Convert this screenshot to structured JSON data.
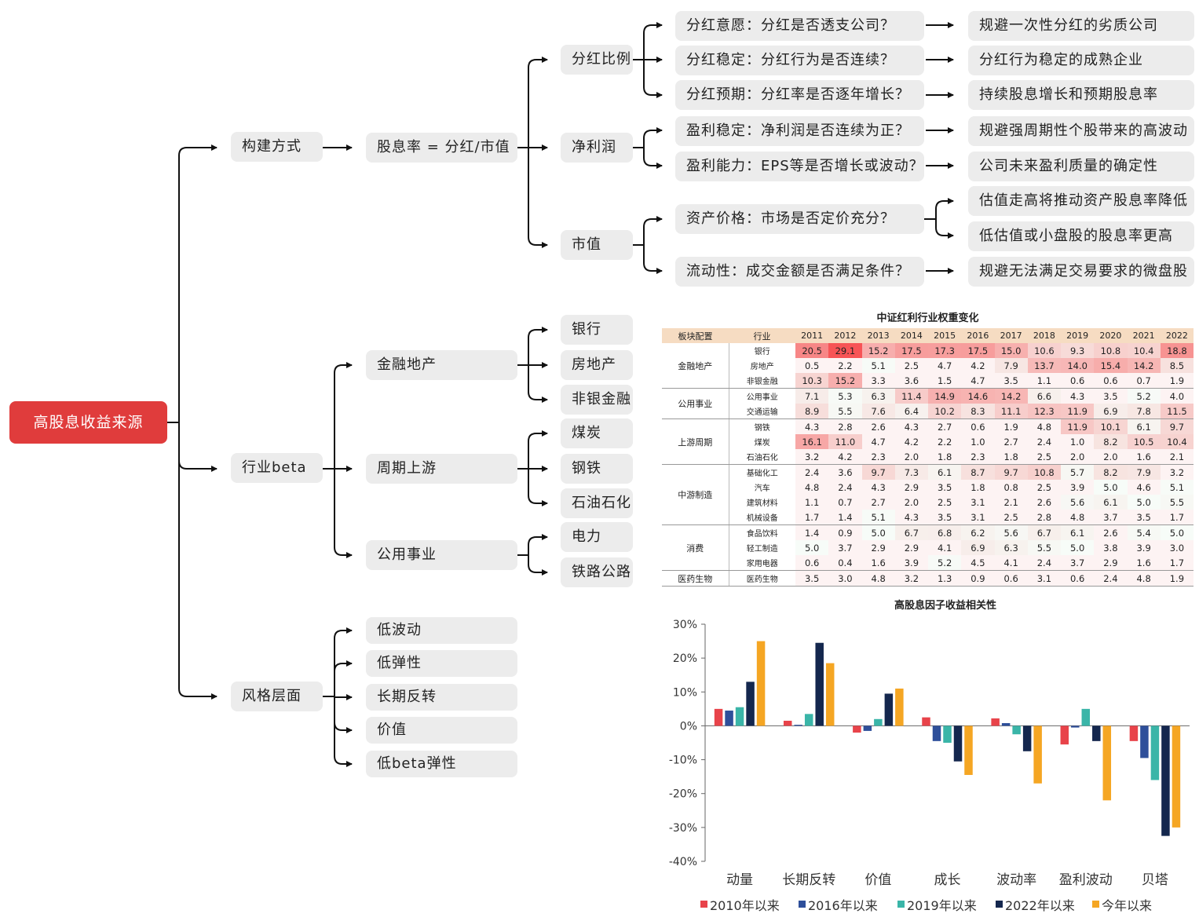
{
  "root": "高股息收益来源",
  "level1": {
    "construct": "构建方式",
    "industry": "行业beta",
    "style": "风格层面"
  },
  "formula": "股息率 = 分红/市值",
  "components": {
    "dividend_ratio": "分红比例",
    "net_profit": "净利润",
    "market_cap": "市值"
  },
  "questions": [
    {
      "q": "分红意愿：分红是否透支公司？",
      "a": "规避一次性分红的劣质公司"
    },
    {
      "q": "分红稳定：分红行为是否连续？",
      "a": "分红行为稳定的成熟企业"
    },
    {
      "q": "分红预期：分红率是否逐年增长？",
      "a": "持续股息增长和预期股息率"
    },
    {
      "q": "盈利稳定：净利润是否连续为正？",
      "a": "规避强周期性个股带来的高波动"
    },
    {
      "q": "盈利能力：EPS等是否增长或波动？",
      "a": "公司未来盈利质量的确定性"
    },
    {
      "q": "资产价格：市场是否定价充分？",
      "a": "估值走高将推动资产股息率降低",
      "a2": "低估值或小盘股的股息率更高"
    },
    {
      "q": "流动性：成交金额是否满足条件？",
      "a": "规避无法满足交易要求的微盘股"
    }
  ],
  "industry_groups": [
    {
      "name": "金融地产",
      "items": [
        "银行",
        "房地产",
        "非银金融"
      ]
    },
    {
      "name": "周期上游",
      "items": [
        "煤炭",
        "钢铁",
        "石油石化"
      ]
    },
    {
      "name": "公用事业",
      "items": [
        "电力",
        "铁路公路"
      ]
    }
  ],
  "styles": [
    "低波动",
    "低弹性",
    "长期反转",
    "价值",
    "低beta弹性"
  ],
  "table": {
    "title": "中证红利行业权重变化",
    "header_sector": "板块配置",
    "header_industry": "行业",
    "years": [
      "2011",
      "2012",
      "2013",
      "2014",
      "2015",
      "2016",
      "2017",
      "2018",
      "2019",
      "2020",
      "2021",
      "2022"
    ],
    "groups": [
      {
        "sector": "金融地产",
        "rows": [
          {
            "ind": "银行",
            "vals": [
              20.5,
              29.1,
              15.2,
              17.5,
              17.3,
              17.5,
              15.0,
              10.6,
              9.3,
              10.8,
              10.4,
              18.8
            ]
          },
          {
            "ind": "房地产",
            "vals": [
              0.5,
              2.2,
              5.1,
              2.5,
              4.7,
              4.2,
              7.9,
              13.7,
              14.0,
              15.4,
              14.2,
              8.5
            ]
          },
          {
            "ind": "非银金融",
            "vals": [
              10.3,
              15.2,
              3.3,
              3.6,
              1.5,
              4.7,
              3.5,
              1.1,
              0.6,
              0.6,
              0.7,
              1.9
            ]
          }
        ]
      },
      {
        "sector": "公用事业",
        "rows": [
          {
            "ind": "公用事业",
            "vals": [
              7.1,
              5.3,
              6.3,
              11.4,
              14.9,
              14.6,
              14.2,
              6.6,
              4.3,
              3.5,
              5.2,
              4.0
            ]
          },
          {
            "ind": "交通运输",
            "vals": [
              8.9,
              5.5,
              7.6,
              6.4,
              10.2,
              8.3,
              11.1,
              12.3,
              11.9,
              6.9,
              7.8,
              11.5
            ]
          }
        ]
      },
      {
        "sector": "上游周期",
        "rows": [
          {
            "ind": "钢铁",
            "vals": [
              4.3,
              2.8,
              2.6,
              4.3,
              2.7,
              0.6,
              1.9,
              4.8,
              11.9,
              10.1,
              6.1,
              9.7
            ]
          },
          {
            "ind": "煤炭",
            "vals": [
              16.1,
              11.0,
              4.7,
              4.2,
              2.2,
              1.0,
              2.7,
              2.4,
              1.0,
              8.2,
              10.5,
              10.4
            ]
          },
          {
            "ind": "石油石化",
            "vals": [
              3.2,
              4.2,
              2.3,
              2.0,
              1.8,
              2.3,
              1.8,
              2.5,
              2.0,
              2.0,
              1.6,
              2.1
            ]
          }
        ]
      },
      {
        "sector": "中游制造",
        "rows": [
          {
            "ind": "基础化工",
            "vals": [
              2.4,
              3.6,
              9.7,
              7.3,
              6.1,
              8.7,
              9.7,
              10.8,
              5.7,
              8.2,
              7.9,
              3.2
            ]
          },
          {
            "ind": "汽车",
            "vals": [
              4.8,
              2.4,
              4.3,
              2.9,
              3.5,
              1.8,
              0.8,
              2.5,
              3.9,
              5.0,
              4.6,
              5.1
            ]
          },
          {
            "ind": "建筑材料",
            "vals": [
              1.1,
              0.7,
              2.7,
              2.0,
              2.5,
              3.1,
              2.1,
              2.6,
              5.6,
              6.1,
              5.0,
              5.5
            ]
          },
          {
            "ind": "机械设备",
            "vals": [
              1.7,
              1.4,
              5.1,
              4.3,
              3.5,
              3.1,
              2.5,
              2.8,
              4.8,
              3.7,
              3.5,
              1.7
            ]
          }
        ]
      },
      {
        "sector": "消费",
        "rows": [
          {
            "ind": "食品饮料",
            "vals": [
              1.4,
              0.9,
              5.0,
              6.7,
              6.8,
              6.2,
              5.6,
              6.7,
              6.1,
              2.6,
              5.4,
              5.0
            ]
          },
          {
            "ind": "轻工制造",
            "vals": [
              5.0,
              3.7,
              2.9,
              2.9,
              4.1,
              6.9,
              6.3,
              5.5,
              5.0,
              3.8,
              3.9,
              3.0
            ]
          },
          {
            "ind": "家用电器",
            "vals": [
              0.6,
              0.4,
              1.6,
              3.9,
              5.2,
              4.5,
              4.1,
              2.4,
              3.7,
              2.9,
              1.6,
              1.7
            ]
          }
        ]
      },
      {
        "sector": "医药生物",
        "rows": [
          {
            "ind": "医药生物",
            "vals": [
              3.5,
              3.0,
              4.8,
              3.2,
              1.3,
              0.9,
              0.6,
              3.1,
              0.6,
              2.4,
              4.8,
              1.9
            ]
          }
        ]
      }
    ]
  },
  "chart_data": {
    "type": "bar",
    "title": "高股息因子收益相关性",
    "categories": [
      "动量",
      "长期反转",
      "价值",
      "成长",
      "波动率",
      "盈利波动",
      "贝塔"
    ],
    "series": [
      {
        "name": "2010年以来",
        "color": "#e8434a",
        "values": [
          5.0,
          1.5,
          -2.0,
          2.5,
          2.2,
          -5.5,
          -4.5
        ]
      },
      {
        "name": "2016年以来",
        "color": "#2e4f9a",
        "values": [
          4.5,
          0.3,
          -1.5,
          -4.5,
          0.8,
          -0.5,
          -9.5
        ]
      },
      {
        "name": "2019年以来",
        "color": "#3ab5a8",
        "values": [
          5.5,
          3.5,
          2.0,
          -5.0,
          -2.5,
          5.0,
          -16.0
        ]
      },
      {
        "name": "2022年以来",
        "color": "#14274e",
        "values": [
          13.0,
          24.5,
          9.5,
          -10.5,
          -7.5,
          -4.5,
          -32.5
        ]
      },
      {
        "name": "今年以来",
        "color": "#f5a623",
        "values": [
          25.0,
          18.5,
          11.0,
          -14.5,
          -17.0,
          -22.0,
          -30.0
        ]
      }
    ],
    "ylim": [
      -40,
      30
    ],
    "yticks": [
      "30%",
      "20%",
      "10%",
      "0%",
      "-10%",
      "-20%",
      "-30%",
      "-40%"
    ],
    "legend": "bottom"
  }
}
